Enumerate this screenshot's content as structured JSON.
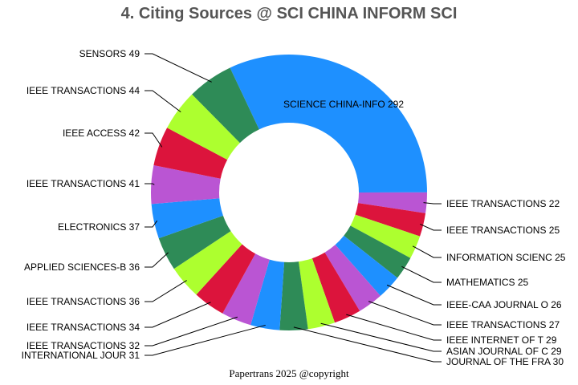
{
  "chart_data": {
    "type": "pie",
    "donut": true,
    "title": "4. Citing Sources @ SCI CHINA INFORM SCI",
    "footer": "Papertrans 2025 @copyright",
    "colors": [
      "#1e90ff",
      "#ba55d3",
      "#dc143c",
      "#adff2f",
      "#2e8b57"
    ],
    "slices": [
      {
        "label": "SCIENCE CHINA-INFO",
        "value": 292
      },
      {
        "label": "IEEE TRANSACTIONS ",
        "value": 22
      },
      {
        "label": "IEEE TRANSACTIONS ",
        "value": 25
      },
      {
        "label": "INFORMATION SCIENC",
        "value": 25
      },
      {
        "label": "MATHEMATICS",
        "value": 25
      },
      {
        "label": "IEEE-CAA JOURNAL O",
        "value": 26
      },
      {
        "label": "IEEE TRANSACTIONS ",
        "value": 27
      },
      {
        "label": "IEEE INTERNET OF T",
        "value": 29
      },
      {
        "label": "ASIAN JOURNAL OF C",
        "value": 29
      },
      {
        "label": "JOURNAL OF THE FRA",
        "value": 30
      },
      {
        "label": "INTERNATIONAL JOUR",
        "value": 31
      },
      {
        "label": "IEEE TRANSACTIONS ",
        "value": 32
      },
      {
        "label": "IEEE TRANSACTIONS ",
        "value": 34
      },
      {
        "label": "IEEE TRANSACTIONS ",
        "value": 36
      },
      {
        "label": "APPLIED SCIENCES-B",
        "value": 36
      },
      {
        "label": "ELECTRONICS",
        "value": 37
      },
      {
        "label": "IEEE TRANSACTIONS ",
        "value": 41
      },
      {
        "label": "IEEE ACCESS",
        "value": 42
      },
      {
        "label": "IEEE TRANSACTIONS ",
        "value": 44
      },
      {
        "label": "SENSORS",
        "value": 49
      }
    ]
  }
}
